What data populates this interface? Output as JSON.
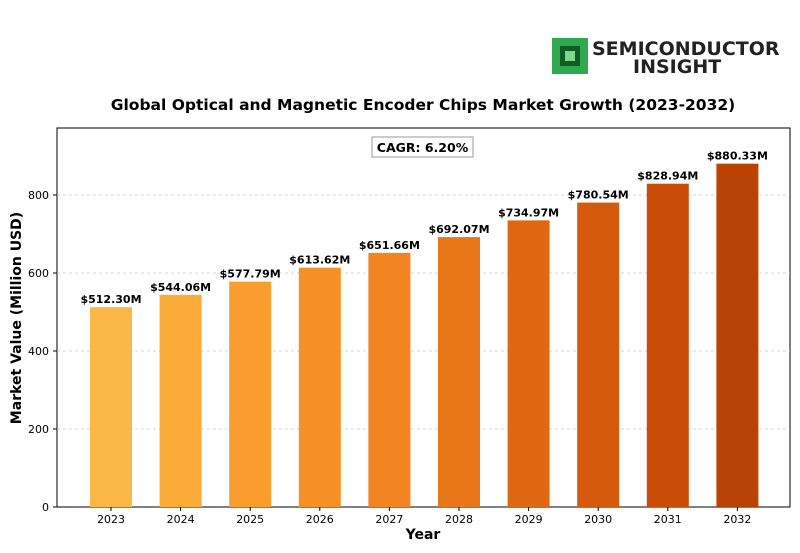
{
  "brand": {
    "line1": "SEMICONDUCTOR",
    "line2": "INSIGHT",
    "logo_icon": "chip-icon",
    "logo_color": "#2fa84f"
  },
  "chart_data": {
    "type": "bar",
    "title": "Global Optical and Magnetic Encoder Chips Market Growth (2023-2032)",
    "xlabel": "Year",
    "ylabel": "Market Value (Million USD)",
    "categories": [
      "2023",
      "2024",
      "2025",
      "2026",
      "2027",
      "2028",
      "2029",
      "2030",
      "2031",
      "2032"
    ],
    "values": [
      512.3,
      544.06,
      577.79,
      613.62,
      651.66,
      692.07,
      734.97,
      780.54,
      828.94,
      880.33
    ],
    "data_labels": [
      "$512.30M",
      "$544.06M",
      "$577.79M",
      "$613.62M",
      "$651.66M",
      "$692.07M",
      "$734.97M",
      "$780.54M",
      "$828.94M",
      "$880.33M"
    ],
    "ylim": [
      0,
      950
    ],
    "yticks": [
      0,
      200,
      400,
      600,
      800
    ],
    "grid": "horizontal dashed",
    "annotation": "CAGR: 6.20%",
    "bar_colors": [
      "#fbb748",
      "#fbab38",
      "#f99e2e",
      "#f79127",
      "#f28421",
      "#ea761a",
      "#e06813",
      "#d55a0c",
      "#c94d06",
      "#b84304"
    ]
  }
}
